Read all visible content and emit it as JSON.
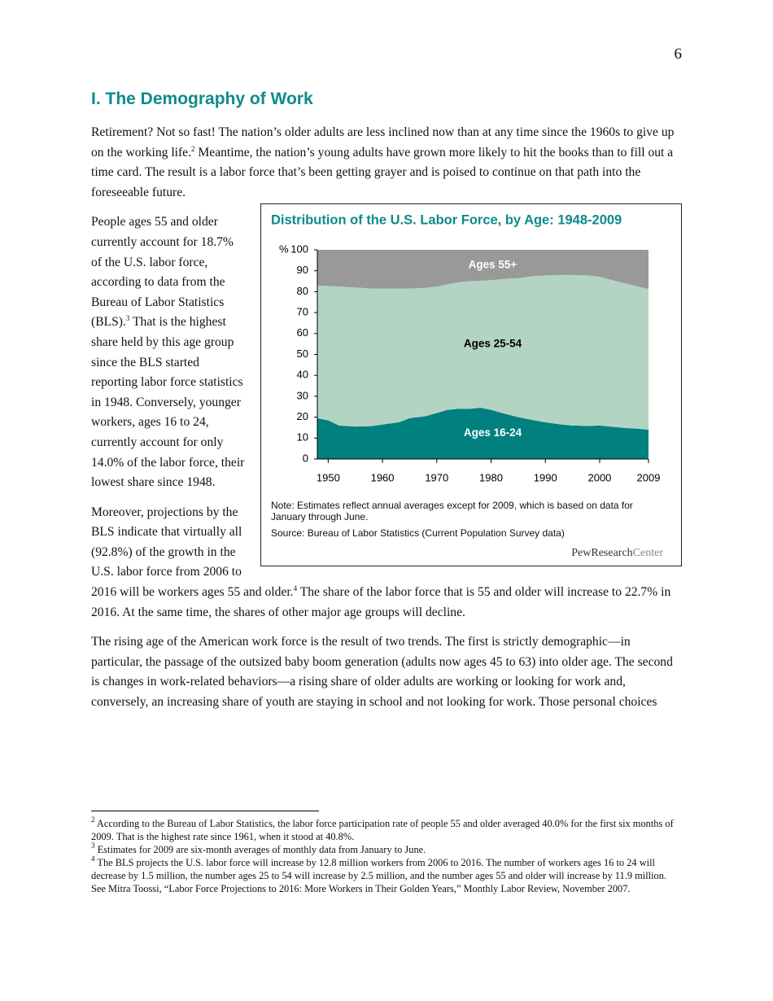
{
  "page_number": "6",
  "heading": "I. The Demography of Work",
  "paragraphs": [
    [
      "Retirement? Not so fast! The nation’s older adults are less inclined now than at any time since the 1960s to give up on the working life.",
      "2",
      "Meantime, the nation’s young adults have grown more likely to hit the books than to fill out a time card. The result is a labor force that’s been getting grayer and is poised to continue on that path into the foreseeable future."
    ],
    [
      "People ages 55 and older currently account for 18.7% of the U.S. labor force, according to data from the Bureau of Labor Statistics (BLS).",
      "3",
      "That is the highest share held by this age group since the BLS started reporting labor force statistics in 1948. Conversely, younger workers, ages 16 to 24, currently account for only 14.0% of the labor force, their lowest share since 1948."
    ],
    [
      "Moreover, projections by the BLS indicate that virtually all (92.8%) of the growth in the U.S. labor force from 2006 to 2016 will be workers ages 55 and older.",
      "4",
      "The share of the labor force that is 55 and older will increase to 22.7% in 2016. At the same time, the shares of other major age groups will decline."
    ],
    [
      "The rising age of the American work force is the result of two trends. The first is strictly demographic—in particular, the passage of the outsized baby boom generation (adults now ages 45 to 63) into older age. The second is changes in work-related behaviors—a rising share of older adults are working or looking for work and, conversely, an increasing share of youth are staying in school and not looking for work. Those personal choices"
    ]
  ],
  "chart_data": {
    "type": "stacked_area",
    "title": "Distribution of the U.S. Labor Force, by Age: 1948-2009",
    "y_unit": "%",
    "x": [
      1948,
      1950,
      1952,
      1955,
      1958,
      1960,
      1963,
      1965,
      1968,
      1970,
      1972,
      1974,
      1976,
      1978,
      1980,
      1982,
      1985,
      1988,
      1990,
      1993,
      1995,
      1998,
      2000,
      2003,
      2005,
      2007,
      2009
    ],
    "series": [
      {
        "name": "Ages 16-24",
        "color": "#00807e",
        "label_color": "#ffffff",
        "values": [
          19.5,
          18.5,
          16,
          15.5,
          15.7,
          16.5,
          17.5,
          19.5,
          20.5,
          22,
          23.5,
          24,
          24,
          24.5,
          23.5,
          22,
          20,
          18.5,
          17.5,
          16.5,
          16,
          15.8,
          16,
          15.2,
          14.8,
          14.5,
          14.0
        ]
      },
      {
        "name": "Ages 25-54",
        "color": "#b3d3c3",
        "label_color": "#000000",
        "values": [
          63.5,
          64.2,
          66.5,
          66.5,
          65.8,
          65,
          64,
          62,
          61.3,
          60.5,
          60,
          60.5,
          61,
          60.7,
          62,
          64,
          66.5,
          69,
          70.3,
          71.5,
          72,
          72,
          71.1,
          69.8,
          69,
          68,
          67.3
        ]
      },
      {
        "name": "Ages 55+",
        "color": "#999999",
        "label_color": "#ffffff",
        "values": [
          17,
          17.3,
          17.5,
          18,
          18.5,
          18.5,
          18.5,
          18.5,
          18.2,
          17.5,
          16.5,
          15.5,
          15,
          14.8,
          14.5,
          14,
          13.5,
          12.5,
          12.2,
          12,
          12,
          12.2,
          12.9,
          15,
          16.2,
          17.5,
          18.7
        ]
      }
    ],
    "xlim": [
      1948,
      2009
    ],
    "xticks": [
      1950,
      1960,
      1970,
      1980,
      1990,
      2000,
      2009
    ],
    "ylim": [
      0,
      100
    ],
    "yticks": [
      0,
      10,
      20,
      30,
      40,
      50,
      60,
      70,
      80,
      90,
      100
    ],
    "note": "Note: Estimates reflect annual averages except for 2009, which is based on data for January through June.",
    "source": "Source: Bureau of Labor Statistics (Current Population Survey data)",
    "credit": "PewResearch",
    "credit_suffix": "Center"
  },
  "footnotes": [
    [
      "2",
      "According to the Bureau of Labor Statistics, the labor force participation rate of people 55 and older averaged 40.0% for the first six months of 2009. That is the highest rate since 1961, when it stood at 40.8%."
    ],
    [
      "3",
      "Estimates for 2009 are six-month averages of monthly data from January to June."
    ],
    [
      "4",
      "The BLS projects the U.S. labor force will increase by 12.8 million workers from 2006 to 2016. The number of workers ages 16 to 24 will decrease by 1.5 million, the number ages 25 to 54 will increase by 2.5 million, and the number ages 55 and older will increase by 11.9 million. See Mitra Toossi, “Labor Force Projections to 2016: More Workers in Their Golden Years,” Monthly Labor Review, November 2007."
    ]
  ]
}
